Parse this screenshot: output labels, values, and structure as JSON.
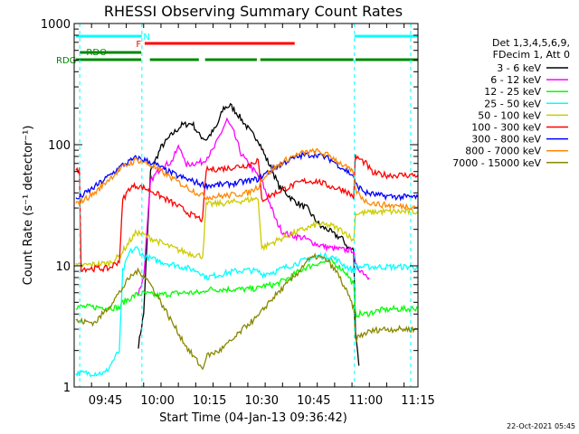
{
  "chart_data": {
    "type": "line",
    "title": "RHESSI Observing Summary Count Rates",
    "xlabel": "Start Time (04-Jan-13 09:36:42)",
    "ylabel": "Count Rate (s⁻¹ detector⁻¹)",
    "x_range_minutes_after_0936": [
      0,
      99
    ],
    "ylim": [
      1,
      1000
    ],
    "y_scale": "log",
    "y_tick_labels": [
      {
        "value": 1,
        "label": "1"
      },
      {
        "value": 10,
        "label": "10"
      },
      {
        "value": 100,
        "label": "100"
      },
      {
        "value": 1000,
        "label": "1000"
      }
    ],
    "x_tick_labels": [
      {
        "minutes": 9,
        "label": "09:45"
      },
      {
        "minutes": 24,
        "label": "10:00"
      },
      {
        "minutes": 39,
        "label": "10:15"
      },
      {
        "minutes": 54,
        "label": "10:30"
      },
      {
        "minutes": 69,
        "label": "10:45"
      },
      {
        "minutes": 84,
        "label": "11:00"
      },
      {
        "minutes": 99,
        "label": "11:15"
      }
    ],
    "legend_header": [
      "Det 1,3,4,5,6,9,",
      "FDecim 1, Att 0"
    ],
    "legend_position": "right",
    "footer_date": "22-Oct-2021 05:45",
    "state_bars": [
      {
        "label": "N",
        "color": "#00ffff",
        "segments": [
          [
            0.5,
            19.5
          ],
          [
            80.7,
            99
          ]
        ]
      },
      {
        "label": "F",
        "color": "#ff0000",
        "segments": [
          [
            20.3,
            63.5
          ]
        ]
      },
      {
        "label": "RDO",
        "color": "#008800",
        "segments": [
          [
            1.6,
            19.3
          ]
        ]
      },
      {
        "label": "RDG",
        "color": "#008800",
        "segments": [
          [
            0.5,
            19.3
          ],
          [
            21.8,
            35.9
          ],
          [
            37.7,
            52.6
          ],
          [
            53.6,
            80.4
          ],
          [
            81,
            99
          ]
        ]
      }
    ],
    "saa_lines_minutes": [
      1.6,
      19.5,
      80.7,
      96.9
    ],
    "series": [
      {
        "name": "3 - 6 keV",
        "color": "#000000",
        "points": [
          [
            18.5,
            2.2
          ],
          [
            20,
            4
          ],
          [
            22,
            60
          ],
          [
            25,
            95
          ],
          [
            28,
            120
          ],
          [
            31,
            145
          ],
          [
            34,
            150
          ],
          [
            36,
            120
          ],
          [
            38,
            110
          ],
          [
            41,
            140
          ],
          [
            43,
            200
          ],
          [
            45,
            210
          ],
          [
            47,
            180
          ],
          [
            49,
            150
          ],
          [
            51,
            125
          ],
          [
            53,
            110
          ],
          [
            55,
            80
          ],
          [
            57,
            62
          ],
          [
            59,
            45
          ],
          [
            61,
            40
          ],
          [
            63,
            35
          ],
          [
            65,
            32
          ],
          [
            67,
            30
          ],
          [
            69,
            25
          ],
          [
            71,
            21
          ],
          [
            73,
            20
          ],
          [
            75,
            18
          ],
          [
            77,
            17
          ],
          [
            79,
            14
          ],
          [
            80.5,
            13.5
          ],
          [
            81,
            3
          ],
          [
            82,
            1.5
          ]
        ]
      },
      {
        "name": "6 - 12 keV",
        "color": "#ff00ff",
        "points": [
          [
            18.5,
            6
          ],
          [
            20,
            8
          ],
          [
            22,
            50
          ],
          [
            25,
            65
          ],
          [
            28,
            72
          ],
          [
            30,
            95
          ],
          [
            31,
            90
          ],
          [
            32,
            68
          ],
          [
            34,
            70
          ],
          [
            37,
            72
          ],
          [
            40,
            90
          ],
          [
            42,
            120
          ],
          [
            44,
            160
          ],
          [
            46,
            125
          ],
          [
            48,
            85
          ],
          [
            50,
            70
          ],
          [
            52,
            60
          ],
          [
            54,
            50
          ],
          [
            56,
            35
          ],
          [
            58,
            24
          ],
          [
            60,
            19
          ],
          [
            62,
            18
          ],
          [
            66,
            17
          ],
          [
            70,
            15
          ],
          [
            74,
            14
          ],
          [
            78,
            13.5
          ],
          [
            80.5,
            13.5
          ],
          [
            81,
            10
          ],
          [
            83,
            9
          ],
          [
            85,
            8
          ]
        ]
      },
      {
        "name": "12 - 25 keV",
        "color": "#00ff00",
        "points": [
          [
            0.5,
            4.6
          ],
          [
            13,
            4.5
          ],
          [
            14,
            5
          ],
          [
            18,
            5.8
          ],
          [
            20,
            5.9
          ],
          [
            22,
            5.8
          ],
          [
            24,
            5.7
          ],
          [
            28,
            5.9
          ],
          [
            32,
            6
          ],
          [
            37,
            6
          ],
          [
            38,
            6.4
          ],
          [
            44,
            6.4
          ],
          [
            50,
            6.4
          ],
          [
            52,
            6.5
          ],
          [
            53,
            6.5
          ],
          [
            54,
            6.8
          ],
          [
            58,
            7
          ],
          [
            62,
            8
          ],
          [
            66,
            9.5
          ],
          [
            70,
            10.5
          ],
          [
            74,
            11
          ],
          [
            78,
            9
          ],
          [
            80.5,
            7
          ],
          [
            81,
            4
          ],
          [
            84,
            4
          ],
          [
            88,
            4.3
          ],
          [
            92,
            4.4
          ],
          [
            96,
            4.4
          ],
          [
            99,
            4.5
          ]
        ]
      },
      {
        "name": "25 - 50 keV",
        "color": "#00ffff",
        "points": [
          [
            0.5,
            1.3
          ],
          [
            9,
            1.3
          ],
          [
            13,
            2
          ],
          [
            14,
            9
          ],
          [
            16,
            13
          ],
          [
            18,
            14
          ],
          [
            20,
            12
          ],
          [
            24,
            11
          ],
          [
            30,
            10
          ],
          [
            36,
            9
          ],
          [
            38,
            8
          ],
          [
            42,
            8.5
          ],
          [
            46,
            9
          ],
          [
            50,
            9.2
          ],
          [
            53,
            9
          ],
          [
            54,
            8.5
          ],
          [
            58,
            9
          ],
          [
            62,
            10
          ],
          [
            66,
            11
          ],
          [
            70,
            12
          ],
          [
            74,
            12
          ],
          [
            78,
            10
          ],
          [
            80.5,
            9
          ],
          [
            81,
            9.8
          ],
          [
            88,
            9.8
          ],
          [
            94,
            9.8
          ],
          [
            99,
            9.8
          ]
        ]
      },
      {
        "name": "50 - 100 keV",
        "color": "#cccc00",
        "points": [
          [
            0.5,
            10
          ],
          [
            10,
            10.5
          ],
          [
            13,
            12
          ],
          [
            16,
            16
          ],
          [
            18,
            19
          ],
          [
            22,
            17
          ],
          [
            26,
            15
          ],
          [
            30,
            13.5
          ],
          [
            34,
            12.5
          ],
          [
            37,
            12
          ],
          [
            38,
            32
          ],
          [
            44,
            33
          ],
          [
            50,
            35
          ],
          [
            53,
            36
          ],
          [
            54,
            14
          ],
          [
            58,
            16
          ],
          [
            62,
            18
          ],
          [
            66,
            20
          ],
          [
            70,
            22
          ],
          [
            74,
            21.5
          ],
          [
            78,
            19
          ],
          [
            80.5,
            16
          ],
          [
            81,
            27
          ],
          [
            88,
            28
          ],
          [
            94,
            28
          ],
          [
            99,
            28
          ]
        ]
      },
      {
        "name": "100 - 300 keV",
        "color": "#ff0000",
        "points": [
          [
            0.5,
            60
          ],
          [
            1.5,
            62
          ],
          [
            2,
            9.5
          ],
          [
            10,
            9.5
          ],
          [
            13,
            11
          ],
          [
            14,
            35
          ],
          [
            16,
            44
          ],
          [
            18,
            46
          ],
          [
            22,
            42
          ],
          [
            26,
            36
          ],
          [
            30,
            31
          ],
          [
            34,
            26
          ],
          [
            37,
            24
          ],
          [
            38,
            62
          ],
          [
            44,
            64
          ],
          [
            50,
            68
          ],
          [
            53,
            75
          ],
          [
            54,
            35
          ],
          [
            58,
            40
          ],
          [
            62,
            45
          ],
          [
            66,
            50
          ],
          [
            70,
            50
          ],
          [
            74,
            45
          ],
          [
            78,
            42
          ],
          [
            80.5,
            37
          ],
          [
            81,
            80
          ],
          [
            84,
            70
          ],
          [
            86,
            58
          ],
          [
            90,
            56
          ],
          [
            94,
            56
          ],
          [
            99,
            56
          ]
        ]
      },
      {
        "name": "300 - 800 keV",
        "color": "#0000ff",
        "points": [
          [
            0.5,
            35
          ],
          [
            6,
            45
          ],
          [
            10,
            55
          ],
          [
            14,
            68
          ],
          [
            18,
            78
          ],
          [
            20,
            75
          ],
          [
            23,
            70
          ],
          [
            26,
            62
          ],
          [
            30,
            55
          ],
          [
            34,
            50
          ],
          [
            37,
            47
          ],
          [
            38,
            46
          ],
          [
            44,
            47
          ],
          [
            50,
            50
          ],
          [
            53,
            52
          ],
          [
            54,
            55
          ],
          [
            58,
            65
          ],
          [
            62,
            75
          ],
          [
            66,
            82
          ],
          [
            70,
            83
          ],
          [
            74,
            75
          ],
          [
            78,
            62
          ],
          [
            80.5,
            55
          ],
          [
            81,
            47
          ],
          [
            84,
            40
          ],
          [
            88,
            38
          ],
          [
            94,
            37
          ],
          [
            99,
            37
          ]
        ]
      },
      {
        "name": "800 - 7000 keV",
        "color": "#ff8800",
        "points": [
          [
            0.5,
            32
          ],
          [
            6,
            40
          ],
          [
            10,
            52
          ],
          [
            14,
            65
          ],
          [
            18,
            75
          ],
          [
            20,
            72
          ],
          [
            23,
            65
          ],
          [
            26,
            58
          ],
          [
            30,
            49
          ],
          [
            34,
            42
          ],
          [
            37,
            38
          ],
          [
            38,
            37
          ],
          [
            44,
            38
          ],
          [
            50,
            40
          ],
          [
            53,
            45
          ],
          [
            54,
            52
          ],
          [
            58,
            65
          ],
          [
            62,
            78
          ],
          [
            66,
            86
          ],
          [
            70,
            88
          ],
          [
            74,
            80
          ],
          [
            78,
            66
          ],
          [
            80.5,
            58
          ],
          [
            81,
            42
          ],
          [
            84,
            34
          ],
          [
            88,
            32
          ],
          [
            94,
            31
          ],
          [
            99,
            31
          ]
        ]
      },
      {
        "name": "7000 - 15000 keV",
        "color": "#888800",
        "points": [
          [
            0.5,
            3.5
          ],
          [
            6,
            3.4
          ],
          [
            10,
            4.6
          ],
          [
            13,
            6
          ],
          [
            16,
            8
          ],
          [
            18,
            9
          ],
          [
            20,
            8.5
          ],
          [
            22,
            7
          ],
          [
            25,
            5
          ],
          [
            28,
            3.5
          ],
          [
            31,
            2.5
          ],
          [
            33,
            2
          ],
          [
            35,
            1.7
          ],
          [
            37,
            1.4
          ],
          [
            38,
            1.8
          ],
          [
            42,
            2
          ],
          [
            46,
            2.5
          ],
          [
            50,
            3.3
          ],
          [
            53,
            3.8
          ],
          [
            56,
            5
          ],
          [
            60,
            6.5
          ],
          [
            64,
            8.5
          ],
          [
            67,
            11
          ],
          [
            70,
            12
          ],
          [
            73,
            11
          ],
          [
            76,
            8.5
          ],
          [
            78,
            6.5
          ],
          [
            80.5,
            4.5
          ],
          [
            81,
            2.5
          ],
          [
            84,
            2.8
          ],
          [
            88,
            3
          ],
          [
            92,
            3
          ],
          [
            96,
            3
          ],
          [
            99,
            3
          ]
        ]
      }
    ]
  }
}
